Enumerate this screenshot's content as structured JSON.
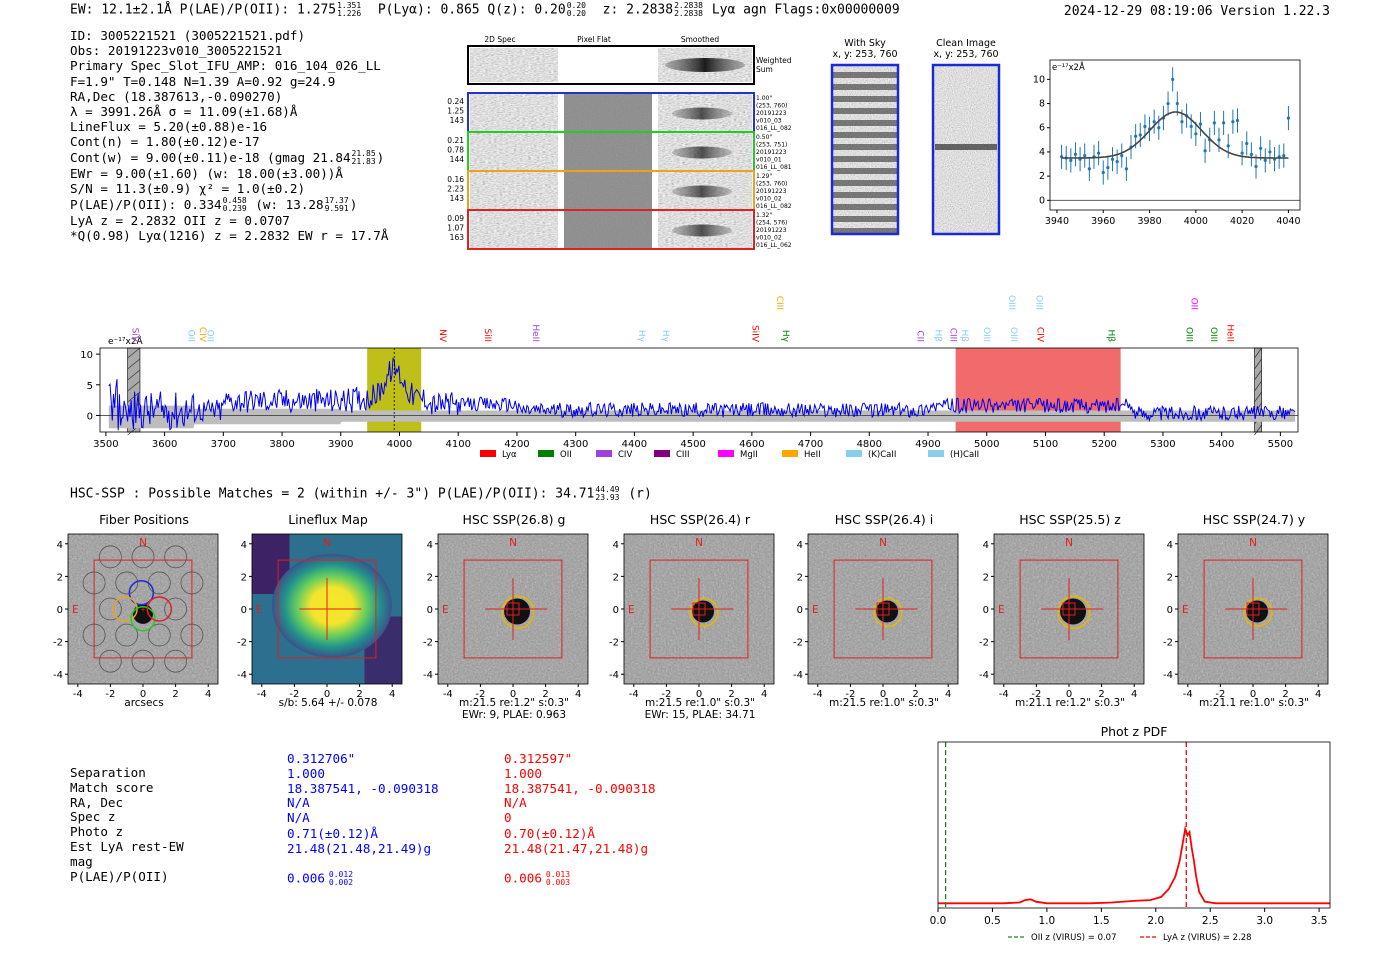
{
  "header": {
    "left": "EW: 12.1±2.1Å  P(LAE)/P(OII): 1.275",
    "plae_hi": "1.351",
    "plae_lo": "1.226",
    "plya": "P(Lyα): 0.865  Q(z): 0.20",
    "qz_hi": "0.20",
    "qz_lo": "0.20",
    "z": "z: 2.2838",
    "z_hi": "2.2838",
    "z_lo": "2.2838",
    "tail": "Lyα  agn  Flags:0x00000009",
    "right": "2024-12-29 08:19:06  Version 1.22.3"
  },
  "info": {
    "lines": [
      "ID: 3005221521 (3005221521.pdf)",
      "Obs: 20191223v010_3005221521",
      "Primary Spec_Slot_IFU_AMP: 016_104_026_LL",
      "F=1.9\"  T=0.148  N=1.39  A=0.92  g=24.9",
      "RA,Dec (18.387613,-0.090270)",
      "λ = 3991.26Å  σ = 11.09(±1.68)Å",
      "LineFlux = 5.20(±0.88)e-16",
      "Cont(n) = 1.80(±0.12)e-17"
    ],
    "contw": "Cont(w) = 9.00(±0.11)e-18 (gmag 21.84",
    "contw_hi": "21.85",
    "contw_lo": "21.83",
    "lines2": [
      "EWr = 9.00(±1.60) (w: 18.00(±3.00))Å",
      "S/N = 11.3(±0.9)  χ² = 1.0(±0.2)"
    ],
    "plae": "P(LAE)/P(OII): 0.334",
    "plae_hi": "0.458",
    "plae_lo": "0.239",
    "plae_w": "(w: 13.28",
    "plae_w_hi": "17.37",
    "plae_w_lo": "9.591",
    "lines3": [
      "LyA z = 2.2832  OII z = 0.0707",
      "*Q(0.98) Lyα(1216) z = 2.2832  EW r = 17.7Å"
    ]
  },
  "spec_panel": {
    "col_titles": [
      "2D Spec",
      "Pixel Flat",
      "Smoothed"
    ],
    "weighted": [
      "Weighted",
      "Sum"
    ],
    "rows": [
      {
        "nums": [
          "0.24",
          "1.25",
          "143"
        ],
        "color": "#2233cc",
        "info": [
          "1.00\"",
          "(253, 760)",
          "20191223",
          "v010_03",
          "016_LL_082"
        ]
      },
      {
        "nums": [
          "0.21",
          "0.78",
          "144"
        ],
        "color": "#22cc22",
        "info": [
          "0.50\"",
          "(253, 751)",
          "20191223",
          "v010_01",
          "016_LL_081"
        ]
      },
      {
        "nums": [
          "0.16",
          "2.23",
          "143"
        ],
        "color": "#f0a020",
        "info": [
          "1.29\"",
          "(253, 760)",
          "20191223",
          "v010_02",
          "016_LL_082"
        ]
      },
      {
        "nums": [
          "0.09",
          "1.07",
          "163"
        ],
        "color": "#dd2222",
        "info": [
          "1.32\"",
          "(254, 576)",
          "20191223",
          "v010_02",
          "016_LL_062"
        ]
      }
    ],
    "sky_title": [
      "With Sky",
      "x, y: 253, 760"
    ],
    "clean_title": [
      "Clean Image",
      "x, y: 253, 760"
    ]
  },
  "zoom_chart": {
    "unit": "e⁻¹⁷x2Å",
    "x": [
      3942,
      3944,
      3946,
      3948,
      3950,
      3952,
      3954,
      3956,
      3958,
      3960,
      3962,
      3964,
      3966,
      3968,
      3970,
      3972,
      3974,
      3976,
      3978,
      3980,
      3982,
      3984,
      3986,
      3988,
      3990,
      3992,
      3994,
      3996,
      3998,
      4000,
      4002,
      4004,
      4006,
      4008,
      4010,
      4012,
      4014,
      4016,
      4018,
      4020,
      4022,
      4024,
      4026,
      4028,
      4030,
      4032,
      4034,
      4036,
      4038,
      4040
    ],
    "y": [
      3.6,
      3.5,
      3.3,
      3.8,
      3.4,
      3.7,
      2.6,
      3.6,
      3.9,
      2.3,
      2.7,
      3.4,
      3.2,
      3.7,
      2.6,
      4.4,
      5.3,
      5.4,
      6.1,
      5.9,
      6.5,
      6.0,
      6.8,
      8.0,
      10.0,
      8.0,
      6.5,
      7.0,
      6.1,
      5.5,
      6.3,
      4.1,
      5.0,
      6.4,
      5.0,
      6.4,
      4.5,
      6.5,
      6.6,
      3.9,
      4.7,
      3.8,
      2.8,
      4.3,
      3.3,
      4.0,
      3.4,
      3.6,
      3.7,
      6.8
    ],
    "err": 1.0,
    "fit": {
      "base": 3.5,
      "amp": 3.8,
      "center": 3991.3,
      "sigma": 11.1
    },
    "xlim": [
      3937,
      4045
    ],
    "ylim": [
      -0.8,
      11.6
    ],
    "xticks": [
      3940,
      3960,
      3980,
      4000,
      4020,
      4040
    ],
    "yticks": [
      0,
      2,
      4,
      6,
      8,
      10
    ]
  },
  "chart_data": [
    {
      "type": "line",
      "title": "Full spectrum",
      "ylabel": "e⁻¹⁷x2Å",
      "xlim": [
        3490,
        5530
      ],
      "ylim": [
        -2.7,
        11
      ],
      "xticks": [
        3500,
        3600,
        3700,
        3800,
        3900,
        4000,
        4100,
        4200,
        4300,
        4400,
        4500,
        4600,
        4700,
        4800,
        4900,
        5000,
        5100,
        5200,
        5300,
        5400,
        5500
      ],
      "yticks": [
        0,
        5,
        10
      ],
      "line_center": 3991,
      "highlight_yellow": [
        3945,
        4037
      ],
      "highlight_red": [
        4947,
        5228
      ],
      "hatched": [
        [
          3537,
          3558
        ],
        [
          5456,
          5468
        ]
      ],
      "lines": [
        {
          "name": "SiV",
          "x": 3545,
          "color": "#a040e0",
          "lvl": 1
        },
        {
          "name": "OII",
          "x": 3641,
          "color": "#87ceeb",
          "lvl": 1
        },
        {
          "name": "CIV",
          "x": 3660,
          "color": "#ffa500",
          "lvl": 1
        },
        {
          "name": "OII",
          "x": 3673,
          "color": "#87ceeb",
          "lvl": 1
        },
        {
          "name": "NV",
          "x": 4069,
          "color": "#ff0000",
          "lvl": 1
        },
        {
          "name": "SiII",
          "x": 4146,
          "color": "#ff0000",
          "lvl": 1
        },
        {
          "name": "HeII",
          "x": 4227,
          "color": "#a040e0",
          "lvl": 1
        },
        {
          "name": "Hγ",
          "x": 4408,
          "color": "#87ceeb",
          "lvl": 1
        },
        {
          "name": "Hγ",
          "x": 4449,
          "color": "#87ceeb",
          "lvl": 1
        },
        {
          "name": "SiIV",
          "x": 4601,
          "color": "#ff0000",
          "lvl": 1
        },
        {
          "name": "CIII",
          "x": 4643,
          "color": "#ffa500",
          "lvl": 2
        },
        {
          "name": "Hγ",
          "x": 4653,
          "color": "#008000",
          "lvl": 1
        },
        {
          "name": "CII",
          "x": 4882,
          "color": "#a040e0",
          "lvl": 1
        },
        {
          "name": "Hβ",
          "x": 4913,
          "color": "#87ceeb",
          "lvl": 1
        },
        {
          "name": "CIII",
          "x": 4938,
          "color": "#a040e0",
          "lvl": 1
        },
        {
          "name": "Hβ",
          "x": 4958,
          "color": "#87ceeb",
          "lvl": 1
        },
        {
          "name": "OIII",
          "x": 4995,
          "color": "#87ceeb",
          "lvl": 1
        },
        {
          "name": "OIII",
          "x": 5038,
          "color": "#87ceeb",
          "lvl": 2
        },
        {
          "name": "OIII",
          "x": 5041,
          "color": "#87ceeb",
          "lvl": 1
        },
        {
          "name": "CIV",
          "x": 5086,
          "color": "#ff0000",
          "lvl": 1
        },
        {
          "name": "OIII",
          "x": 5085,
          "color": "#87ceeb",
          "lvl": 2
        },
        {
          "name": "Hβ",
          "x": 5207,
          "color": "#008000",
          "lvl": 1
        },
        {
          "name": "OIII",
          "x": 5340,
          "color": "#008000",
          "lvl": 1
        },
        {
          "name": "OII",
          "x": 5349,
          "color": "#ff00ff",
          "lvl": 2
        },
        {
          "name": "OIII",
          "x": 5382,
          "color": "#008000",
          "lvl": 1
        },
        {
          "name": "HeII",
          "x": 5410,
          "color": "#ff0000",
          "lvl": 1
        }
      ],
      "legend": [
        {
          "name": "Lyα",
          "color": "#ff0000"
        },
        {
          "name": "OII",
          "color": "#008000"
        },
        {
          "name": "CIV",
          "color": "#a040e0"
        },
        {
          "name": "CIII",
          "color": "#800080"
        },
        {
          "name": "MgII",
          "color": "#ff00ff"
        },
        {
          "name": "HeII",
          "color": "#ffa500"
        },
        {
          "name": "(K)CaII",
          "color": "#87ceeb"
        },
        {
          "name": "(H)CaII",
          "color": "#87ceeb"
        }
      ]
    },
    {
      "type": "line",
      "title": "Phot z PDF",
      "xlim": [
        0,
        3.6
      ],
      "ylim": [
        0,
        1.05
      ],
      "xticks": [
        0.0,
        0.5,
        1.0,
        1.5,
        2.0,
        2.5,
        3.0,
        3.5
      ],
      "x": [
        0,
        0.6,
        0.75,
        0.8,
        0.85,
        0.9,
        1.0,
        1.4,
        1.6,
        1.8,
        1.95,
        2.05,
        2.12,
        2.18,
        2.22,
        2.25,
        2.27,
        2.29,
        2.31,
        2.33,
        2.35,
        2.37,
        2.4,
        2.45,
        2.55,
        3.6
      ],
      "y": [
        0.03,
        0.03,
        0.035,
        0.05,
        0.055,
        0.04,
        0.03,
        0.03,
        0.035,
        0.045,
        0.05,
        0.07,
        0.12,
        0.2,
        0.3,
        0.42,
        0.5,
        0.46,
        0.48,
        0.38,
        0.3,
        0.2,
        0.1,
        0.04,
        0.03,
        0.03
      ],
      "oii_z": 0.07,
      "lya_z": 2.28,
      "legend": [
        "OII z (VIRUS) = 0.07",
        "LyA z (VIRUS) = 2.28"
      ]
    }
  ],
  "hsc": {
    "title": "HSC-SSP : Possible Matches = 2 (within +/- 3\")  P(LAE)/P(OII): 34.71",
    "title_hi": "44.49",
    "title_lo": "23.93",
    "title_tail": "(r)",
    "thumbs": [
      {
        "title": "Fiber Positions",
        "kind": "fibers",
        "cap": [
          "arcsecs",
          ""
        ]
      },
      {
        "title": "Lineflux Map",
        "kind": "lineflux",
        "cap": [
          "s/b: 5.64 +/- 0.078",
          ""
        ]
      },
      {
        "title": "HSC SSP(26.8) g",
        "kind": "hsc",
        "rad": 16,
        "cap": [
          "m:21.5  re:1.2\"  s:0.3\"",
          "EWr: 9, PLAE: 0.963"
        ]
      },
      {
        "title": "HSC SSP(26.4) r",
        "kind": "hsc",
        "rad": 14,
        "cap": [
          "m:21.5  re:1.0\"  s:0.3\"",
          "EWr: 15, PLAE: 34.71"
        ]
      },
      {
        "title": "HSC SSP(26.4) i",
        "kind": "hsc",
        "rad": 14,
        "cap": [
          "m:21.5  re:1.0\"  s:0.3\"",
          ""
        ]
      },
      {
        "title": "HSC SSP(25.5) z",
        "kind": "hsc",
        "rad": 16,
        "cap": [
          "m:21.1  re:1.2\"  s:0.3\"",
          ""
        ]
      },
      {
        "title": "HSC SSP(24.7) y",
        "kind": "hsc",
        "rad": 14,
        "cap": [
          "m:21.1  re:1.0\"  s:0.3\"",
          ""
        ]
      }
    ],
    "axis_ticks": [
      "-4",
      "-2",
      "0",
      "2",
      "4"
    ],
    "n_label": "N",
    "e_label": "E"
  },
  "matches": {
    "labels": [
      "Separation",
      "Match score",
      "RA, Dec",
      "Spec z",
      "Photo z",
      "Est LyA rest-EW",
      "mag",
      "P(LAE)/P(OII)"
    ],
    "blue": [
      "0.312706\"",
      "1.000",
      "18.387541, -0.090318",
      "N/A",
      "N/A",
      "0.71(±0.12)Å",
      "21.48(21.48,21.49)g",
      "0.006"
    ],
    "blue_hi": "0.012",
    "blue_lo": "0.002",
    "red": [
      "0.312597\"",
      "1.000",
      "18.387541, -0.090318",
      "N/A",
      "0",
      "0.70(±0.12)Å",
      "21.48(21.47,21.48)g",
      "0.006"
    ],
    "red_hi": "0.013",
    "red_lo": "0.003"
  }
}
